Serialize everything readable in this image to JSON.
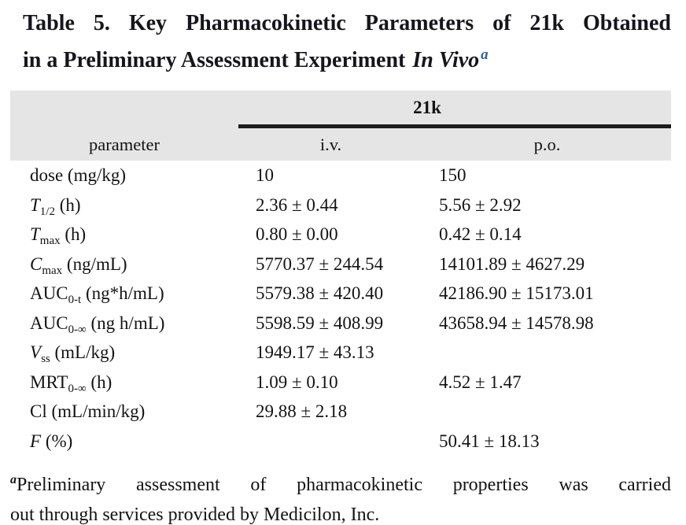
{
  "title": {
    "line1": "Table 5. Key Pharmacokinetic Parameters of 21k Obtained",
    "line2_regular": "in a Preliminary Assessment Experiment",
    "line2_italic": "In Vivo",
    "superscript": "a"
  },
  "table": {
    "group_header": "21k",
    "columns": {
      "parameter": "parameter",
      "iv": "i.v.",
      "po": "p.o."
    },
    "rows": [
      {
        "base": "dose",
        "sub": "",
        "unit": " (mg/kg)",
        "iv": "10",
        "po": "150"
      },
      {
        "base": "T",
        "sub": "1/2",
        "unit": " (h)",
        "iv": "2.36 ± 0.44",
        "po": "5.56 ± 2.92"
      },
      {
        "base": "T",
        "sub": "max",
        "unit": " (h)",
        "iv": "0.80 ± 0.00",
        "po": "0.42 ± 0.14"
      },
      {
        "base": "C",
        "sub": "max",
        "unit": " (ng/mL)",
        "iv": "5770.37 ± 244.54",
        "po": "14101.89 ± 4627.29"
      },
      {
        "base": "AUC",
        "sub": "0-t",
        "unit": " (ng*h/mL)",
        "iv": "5579.38 ± 420.40",
        "po": "42186.90 ± 15173.01"
      },
      {
        "base": "AUC",
        "sub": "0-∞",
        "unit": " (ng h/mL)",
        "iv": "5598.59 ± 408.99",
        "po": "43658.94 ± 14578.98"
      },
      {
        "base": "V",
        "sub": "ss",
        "unit": " (mL/kg)",
        "iv": "1949.17 ± 43.13",
        "po": ""
      },
      {
        "base": "MRT",
        "sub": "0-∞",
        "unit": " (h)",
        "iv": "1.09 ± 0.10",
        "po": "4.52 ± 1.47"
      },
      {
        "base": "Cl",
        "sub": "",
        "unit": " (mL/min/kg)",
        "iv": "29.88 ± 2.18",
        "po": ""
      },
      {
        "base": "F",
        "sub": "",
        "unit": " (%)",
        "iv": "",
        "po": "50.41 ± 18.13"
      }
    ]
  },
  "footnote": {
    "marker": "a",
    "line1": "Preliminary assessment of pharmacokinetic properties was carried",
    "line2": "out through services provided by Medicilon, Inc."
  },
  "colors": {
    "header_band": "#e5e5e5",
    "accent_blue": "#2f5fae",
    "rule": "#1c1c1c",
    "text": "#131313"
  }
}
